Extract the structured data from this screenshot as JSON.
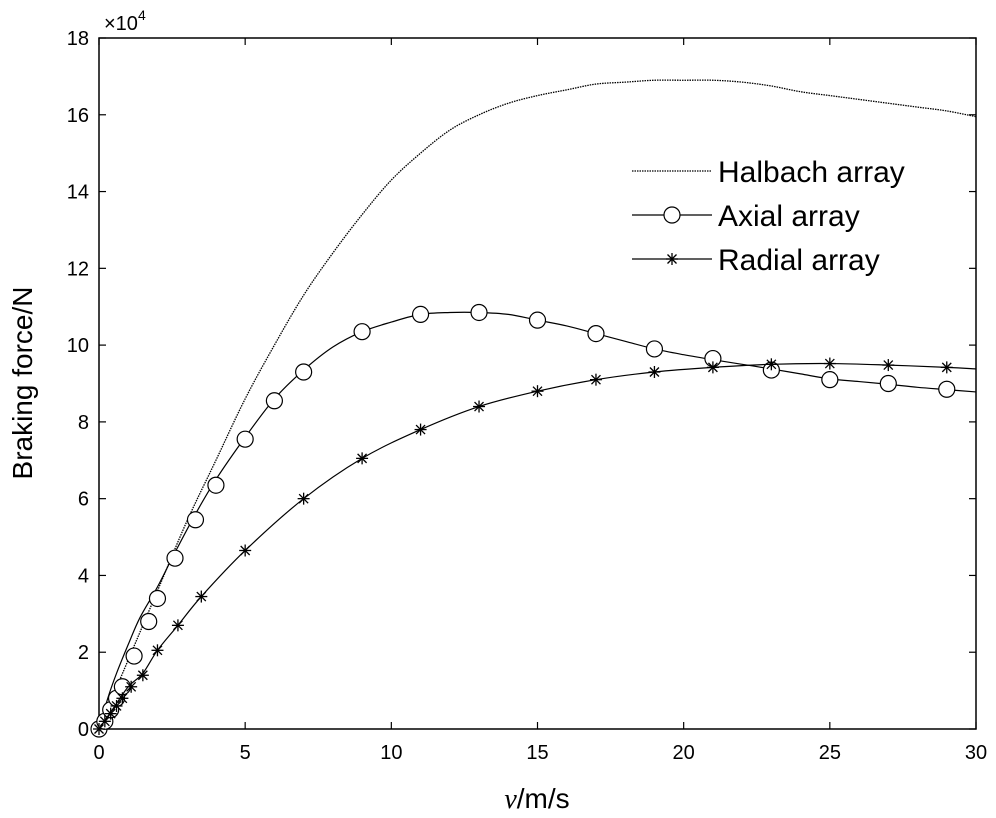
{
  "chart_data": {
    "type": "line",
    "title": "",
    "xlabel_italic": "v",
    "xlabel_rest": "/m/s",
    "ylabel": "Braking force/N",
    "y_multiplier_base": "×10",
    "y_multiplier_exp": "4",
    "xlim": [
      0,
      30
    ],
    "ylim": [
      0,
      18
    ],
    "xticks": [
      0,
      5,
      10,
      15,
      20,
      25,
      30
    ],
    "yticks": [
      0,
      2,
      4,
      6,
      8,
      10,
      12,
      14,
      16,
      18
    ],
    "legend_position": "upper-right",
    "series": [
      {
        "name": "Halbach array",
        "marker": "none",
        "curve_x": [
          0,
          1,
          2,
          3,
          4,
          5,
          6,
          7,
          8,
          9,
          10,
          11,
          12,
          13,
          14,
          15,
          16,
          17,
          18,
          19,
          20,
          21,
          22,
          23,
          24,
          25,
          26,
          27,
          28,
          29,
          30
        ],
        "curve_y": [
          0,
          1.8,
          3.6,
          5.4,
          7.0,
          8.6,
          10.0,
          11.3,
          12.4,
          13.4,
          14.3,
          15.0,
          15.6,
          16.0,
          16.3,
          16.5,
          16.65,
          16.8,
          16.85,
          16.9,
          16.9,
          16.9,
          16.85,
          16.75,
          16.6,
          16.5,
          16.4,
          16.3,
          16.2,
          16.1,
          15.95
        ]
      },
      {
        "name": "Axial array",
        "marker": "circle",
        "curve_x": [
          0,
          0.3,
          0.6,
          1,
          1.4,
          2,
          2.6,
          3.3,
          4,
          5,
          6,
          7,
          8,
          9,
          10,
          11,
          12,
          13,
          14,
          15,
          16,
          17,
          18,
          19,
          20,
          21,
          22,
          23,
          24,
          25,
          26,
          27,
          28,
          29,
          30
        ],
        "curve_y": [
          0,
          0.8,
          1.45,
          2.2,
          2.9,
          3.7,
          4.6,
          5.6,
          6.5,
          7.6,
          8.6,
          9.35,
          9.95,
          10.35,
          10.6,
          10.8,
          10.85,
          10.85,
          10.8,
          10.65,
          10.5,
          10.3,
          10.1,
          9.9,
          9.75,
          9.62,
          9.5,
          9.38,
          9.25,
          9.12,
          9.05,
          8.98,
          8.9,
          8.84,
          8.78
        ],
        "markers_x": [
          0,
          0.2,
          0.4,
          0.6,
          0.8,
          1.2,
          1.7,
          2.0,
          2.6,
          3.3,
          4,
          5,
          6,
          7,
          9,
          11,
          13,
          15,
          17,
          19,
          21,
          23,
          25,
          27,
          29
        ],
        "markers_y": [
          0,
          0.2,
          0.5,
          0.8,
          1.1,
          1.9,
          2.8,
          3.4,
          4.45,
          5.45,
          6.35,
          7.55,
          8.55,
          9.3,
          10.35,
          10.8,
          10.85,
          10.65,
          10.3,
          9.9,
          9.65,
          9.35,
          9.1,
          9.0,
          8.85
        ]
      },
      {
        "name": "Radial array",
        "marker": "asterisk",
        "curve_x": [
          0,
          0.5,
          1,
          1.5,
          2,
          2.7,
          3.5,
          5,
          7,
          9,
          11,
          13,
          15,
          17,
          19,
          21,
          23,
          25,
          27,
          29,
          30
        ],
        "curve_y": [
          0,
          0.55,
          1.1,
          1.45,
          2.05,
          2.7,
          3.45,
          4.65,
          6.0,
          7.05,
          7.8,
          8.4,
          8.8,
          9.1,
          9.3,
          9.42,
          9.5,
          9.52,
          9.48,
          9.42,
          9.38
        ],
        "markers_x": [
          0,
          0.2,
          0.4,
          0.6,
          0.8,
          1.1,
          1.5,
          2,
          2.7,
          3.5,
          5,
          7,
          9,
          11,
          13,
          15,
          17,
          19,
          21,
          23,
          25,
          27,
          29
        ],
        "markers_y": [
          0,
          0.2,
          0.4,
          0.6,
          0.8,
          1.1,
          1.4,
          2.05,
          2.7,
          3.45,
          4.65,
          6.0,
          7.05,
          7.8,
          8.4,
          8.8,
          9.1,
          9.3,
          9.42,
          9.5,
          9.52,
          9.48,
          9.42
        ]
      }
    ]
  }
}
